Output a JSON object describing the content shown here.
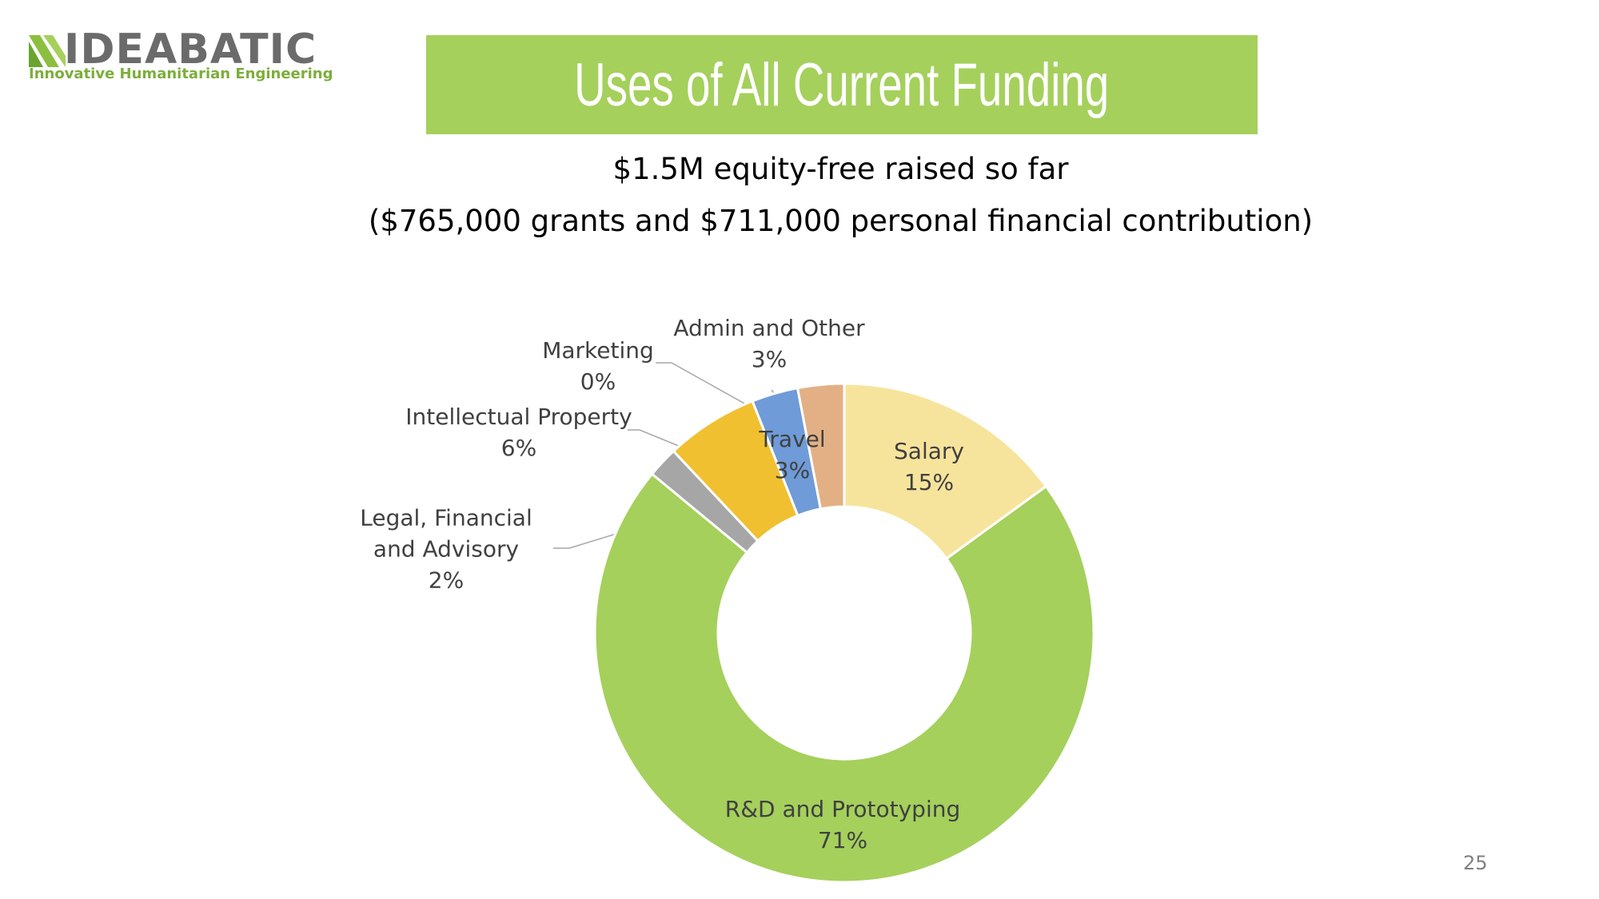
{
  "logo": {
    "name": "IDEABATIC",
    "tagline": "Innovative Humanitarian Engineering"
  },
  "page_number": "25",
  "chart_data": {
    "type": "donut",
    "title": "Uses of All Current Funding",
    "subtitle": "$1.5M equity-free raised so far",
    "subtitle2": "($765,000 grants and $711,000 personal financial contribution)",
    "categories": [
      "Salary",
      "R&D and Prototyping",
      "Legal, Financial and Advisory",
      "Intellectual Property",
      "Marketing",
      "Travel",
      "Admin and Other"
    ],
    "values": [
      15,
      71,
      2,
      6,
      0,
      3,
      3
    ],
    "value_labels": [
      "15%",
      "71%",
      "2%",
      "6%",
      "0%",
      "3%",
      "3%"
    ],
    "colors": [
      "#f7e49c",
      "#a5d05c",
      "#a6a6a6",
      "#f0c030",
      "#4472c4",
      "#6f9bd8",
      "#e3b085"
    ]
  }
}
